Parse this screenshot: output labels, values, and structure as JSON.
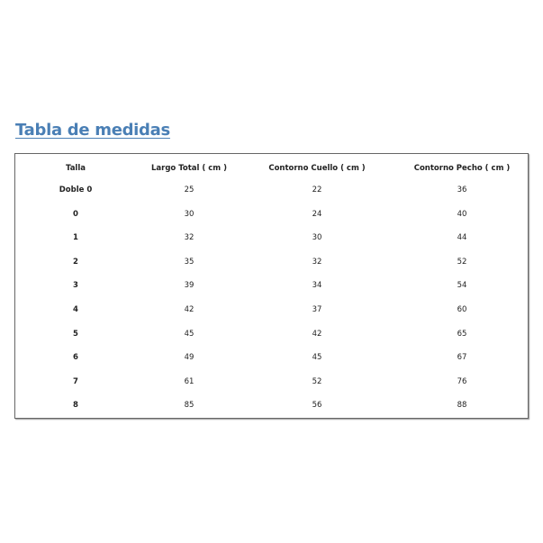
{
  "title": "Tabla de medidas",
  "table": {
    "headers": [
      "Talla",
      "Largo Total ( cm )",
      "Contorno Cuello ( cm )",
      "Contorno Pecho ( cm )"
    ],
    "rows": [
      [
        "Doble 0",
        "25",
        "22",
        "36"
      ],
      [
        "0",
        "30",
        "24",
        "40"
      ],
      [
        "1",
        "32",
        "30",
        "44"
      ],
      [
        "2",
        "35",
        "32",
        "52"
      ],
      [
        "3",
        "39",
        "34",
        "54"
      ],
      [
        "4",
        "42",
        "37",
        "60"
      ],
      [
        "5",
        "45",
        "42",
        "65"
      ],
      [
        "6",
        "49",
        "45",
        "67"
      ],
      [
        "7",
        "61",
        "52",
        "76"
      ],
      [
        "8",
        "85",
        "56",
        "88"
      ]
    ]
  },
  "colors": {
    "title": "#4a7fb5",
    "border": "#666666"
  }
}
